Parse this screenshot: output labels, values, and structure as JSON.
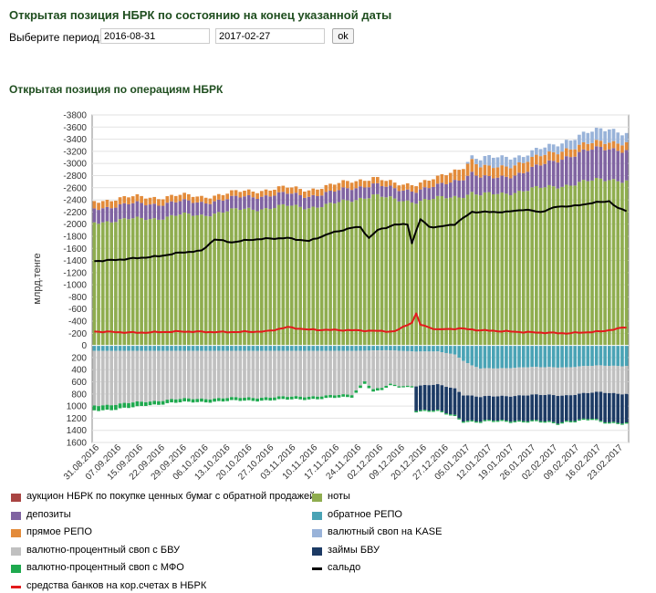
{
  "header": {
    "title": "Открытая позиция НБРК по состоянию на конец указанной даты",
    "period_label": "Выберите период:",
    "date_from": "2016-08-31",
    "date_to": "2017-02-27",
    "ok_label": "ok"
  },
  "section_title": "Открытая позиция по операциям НБРК",
  "chart_data": {
    "type": "bar",
    "stacked": true,
    "ylabel": "млрд.тенге",
    "ylim": [
      -3800,
      1600
    ],
    "y_ticks": [
      "-3800",
      "-3600",
      "-3400",
      "-3200",
      "-3000",
      "-2800",
      "-2600",
      "-2400",
      "-2200",
      "-2000",
      "-1800",
      "-1600",
      "-1400",
      "-1200",
      "-1000",
      "-800",
      "-600",
      "-400",
      "-200",
      "0",
      "200",
      "400",
      "600",
      "800",
      "1000",
      "1200",
      "1400",
      "1600"
    ],
    "x_tick_labels": [
      "31.08.2016",
      "07.09.2016",
      "15.09.2016",
      "22.09.2016",
      "29.09.2016",
      "06.10.2016",
      "13.10.2016",
      "20.10.2016",
      "27.10.2016",
      "03.11.2016",
      "10.11.2016",
      "17.11.2016",
      "24.11.2016",
      "02.12.2016",
      "09.12.2016",
      "20.12.2016",
      "27.12.2016",
      "05.01.2017",
      "12.01.2017",
      "19.01.2017",
      "26.01.2017",
      "02.02.2017",
      "09.02.2017",
      "16.02.2017",
      "23.02.2017"
    ],
    "grid": true,
    "legend_position": "bottom",
    "series": [
      {
        "name": "аукцион НБРК по покупке ценных бумаг с обратной продажей",
        "color": "#a94442",
        "kind": "bar",
        "anchors": [
          [
            0,
            0
          ],
          [
            124,
            0
          ]
        ]
      },
      {
        "name": "ноты",
        "color": "#8fad4f",
        "kind": "bar",
        "anchors": [
          [
            0,
            -2030
          ],
          [
            8,
            -2080
          ],
          [
            15,
            -2100
          ],
          [
            20,
            -2150
          ],
          [
            25,
            -2150
          ],
          [
            30,
            -2200
          ],
          [
            35,
            -2250
          ],
          [
            40,
            -2260
          ],
          [
            45,
            -2300
          ],
          [
            50,
            -2280
          ],
          [
            55,
            -2320
          ],
          [
            60,
            -2400
          ],
          [
            65,
            -2480
          ],
          [
            70,
            -2400
          ],
          [
            75,
            -2380
          ],
          [
            80,
            -2420
          ],
          [
            85,
            -2460
          ],
          [
            88,
            -2520
          ],
          [
            90,
            -2480
          ],
          [
            95,
            -2500
          ],
          [
            100,
            -2560
          ],
          [
            105,
            -2600
          ],
          [
            110,
            -2650
          ],
          [
            115,
            -2700
          ],
          [
            120,
            -2750
          ],
          [
            124,
            -2720
          ]
        ]
      },
      {
        "name": "депозиты",
        "color": "#8064a2",
        "kind": "bar",
        "anchors": [
          [
            0,
            -230
          ],
          [
            10,
            -250
          ],
          [
            20,
            -220
          ],
          [
            30,
            -200
          ],
          [
            40,
            -210
          ],
          [
            50,
            -190
          ],
          [
            60,
            -200
          ],
          [
            65,
            -180
          ],
          [
            70,
            -170
          ],
          [
            80,
            -200
          ],
          [
            88,
            -330
          ],
          [
            92,
            -260
          ],
          [
            100,
            -300
          ],
          [
            110,
            -470
          ],
          [
            118,
            -520
          ],
          [
            124,
            -500
          ]
        ]
      },
      {
        "name": "обратное РЕПО",
        "color": "#4aa3b5",
        "kind": "bar",
        "anchors": [
          [
            0,
            90
          ],
          [
            60,
            90
          ],
          [
            68,
            80
          ],
          [
            75,
            100
          ],
          [
            80,
            100
          ],
          [
            84,
            150
          ],
          [
            86,
            250
          ],
          [
            88,
            330
          ],
          [
            90,
            380
          ],
          [
            94,
            380
          ],
          [
            100,
            360
          ],
          [
            110,
            360
          ],
          [
            118,
            330
          ],
          [
            124,
            340
          ]
        ]
      },
      {
        "name": "прямое РЕПО",
        "color": "#e38b3a",
        "kind": "bar",
        "anchors": [
          [
            0,
            -120
          ],
          [
            15,
            -110
          ],
          [
            30,
            -90
          ],
          [
            45,
            -100
          ],
          [
            60,
            -120
          ],
          [
            70,
            -90
          ],
          [
            80,
            -130
          ],
          [
            88,
            -210
          ],
          [
            90,
            -170
          ],
          [
            100,
            -170
          ],
          [
            110,
            -130
          ],
          [
            118,
            -100
          ],
          [
            124,
            -130
          ]
        ]
      },
      {
        "name": "валютный своп на KASE",
        "color": "#99b3d9",
        "kind": "bar",
        "anchors": [
          [
            0,
            0
          ],
          [
            86,
            0
          ],
          [
            88,
            -60
          ],
          [
            92,
            -170
          ],
          [
            96,
            -160
          ],
          [
            100,
            -100
          ],
          [
            105,
            -120
          ],
          [
            110,
            -140
          ],
          [
            115,
            -180
          ],
          [
            120,
            -220
          ],
          [
            124,
            -150
          ]
        ]
      },
      {
        "name": "валютно-процентный своп с БВУ",
        "color": "#c0c0c0",
        "kind": "bar",
        "anchors": [
          [
            0,
            900
          ],
          [
            5,
            880
          ],
          [
            10,
            850
          ],
          [
            18,
            800
          ],
          [
            30,
            780
          ],
          [
            45,
            760
          ],
          [
            55,
            740
          ],
          [
            60,
            720
          ],
          [
            63,
            500
          ],
          [
            65,
            640
          ],
          [
            67,
            620
          ],
          [
            69,
            560
          ],
          [
            71,
            580
          ],
          [
            76,
            560
          ],
          [
            80,
            550
          ],
          [
            84,
            560
          ],
          [
            86,
            560
          ],
          [
            88,
            500
          ],
          [
            90,
            470
          ],
          [
            94,
            460
          ],
          [
            100,
            460
          ],
          [
            110,
            460
          ],
          [
            118,
            440
          ],
          [
            124,
            460
          ]
        ]
      },
      {
        "name": "займы БВУ",
        "color": "#1c3a64",
        "kind": "bar",
        "anchors": [
          [
            0,
            0
          ],
          [
            74,
            0
          ],
          [
            75,
            400
          ],
          [
            80,
            430
          ],
          [
            84,
            440
          ],
          [
            86,
            420
          ],
          [
            88,
            410
          ],
          [
            92,
            400
          ],
          [
            96,
            400
          ],
          [
            100,
            420
          ],
          [
            106,
            440
          ],
          [
            108,
            450
          ],
          [
            110,
            420
          ],
          [
            114,
            430
          ],
          [
            116,
            430
          ],
          [
            118,
            480
          ],
          [
            124,
            470
          ]
        ]
      },
      {
        "name": "валютно-процентный своп с МФО",
        "color": "#1ea94e",
        "kind": "bar",
        "anchors": [
          [
            0,
            80
          ],
          [
            10,
            80
          ],
          [
            12,
            60
          ],
          [
            30,
            50
          ],
          [
            60,
            40
          ],
          [
            64,
            40
          ],
          [
            66,
            40
          ],
          [
            70,
            20
          ],
          [
            124,
            20
          ]
        ]
      },
      {
        "name": "средства банков на кор.счетах в НБРК",
        "color": "#e31a1c",
        "kind": "line",
        "anchors": [
          [
            0,
            -230
          ],
          [
            10,
            -210
          ],
          [
            20,
            -230
          ],
          [
            30,
            -220
          ],
          [
            40,
            -230
          ],
          [
            45,
            -300
          ],
          [
            50,
            -260
          ],
          [
            60,
            -250
          ],
          [
            70,
            -230
          ],
          [
            74,
            -380
          ],
          [
            75,
            -520
          ],
          [
            76,
            -340
          ],
          [
            80,
            -260
          ],
          [
            85,
            -280
          ],
          [
            90,
            -250
          ],
          [
            100,
            -220
          ],
          [
            110,
            -200
          ],
          [
            118,
            -230
          ],
          [
            124,
            -300
          ]
        ]
      },
      {
        "name": "сальдо",
        "color": "#000000",
        "kind": "line",
        "anchors": [
          [
            0,
            -1390
          ],
          [
            5,
            -1410
          ],
          [
            10,
            -1440
          ],
          [
            15,
            -1470
          ],
          [
            20,
            -1530
          ],
          [
            25,
            -1560
          ],
          [
            28,
            -1750
          ],
          [
            32,
            -1700
          ],
          [
            36,
            -1740
          ],
          [
            40,
            -1760
          ],
          [
            45,
            -1770
          ],
          [
            50,
            -1720
          ],
          [
            55,
            -1850
          ],
          [
            60,
            -1940
          ],
          [
            62,
            -1950
          ],
          [
            64,
            -1770
          ],
          [
            66,
            -1900
          ],
          [
            70,
            -1990
          ],
          [
            73,
            -2000
          ],
          [
            74,
            -1690
          ],
          [
            76,
            -2080
          ],
          [
            78,
            -1960
          ],
          [
            80,
            -1950
          ],
          [
            84,
            -2000
          ],
          [
            88,
            -2200
          ],
          [
            92,
            -2200
          ],
          [
            96,
            -2200
          ],
          [
            100,
            -2240
          ],
          [
            104,
            -2200
          ],
          [
            108,
            -2290
          ],
          [
            112,
            -2300
          ],
          [
            116,
            -2350
          ],
          [
            120,
            -2380
          ],
          [
            122,
            -2260
          ],
          [
            124,
            -2220
          ]
        ]
      }
    ]
  }
}
